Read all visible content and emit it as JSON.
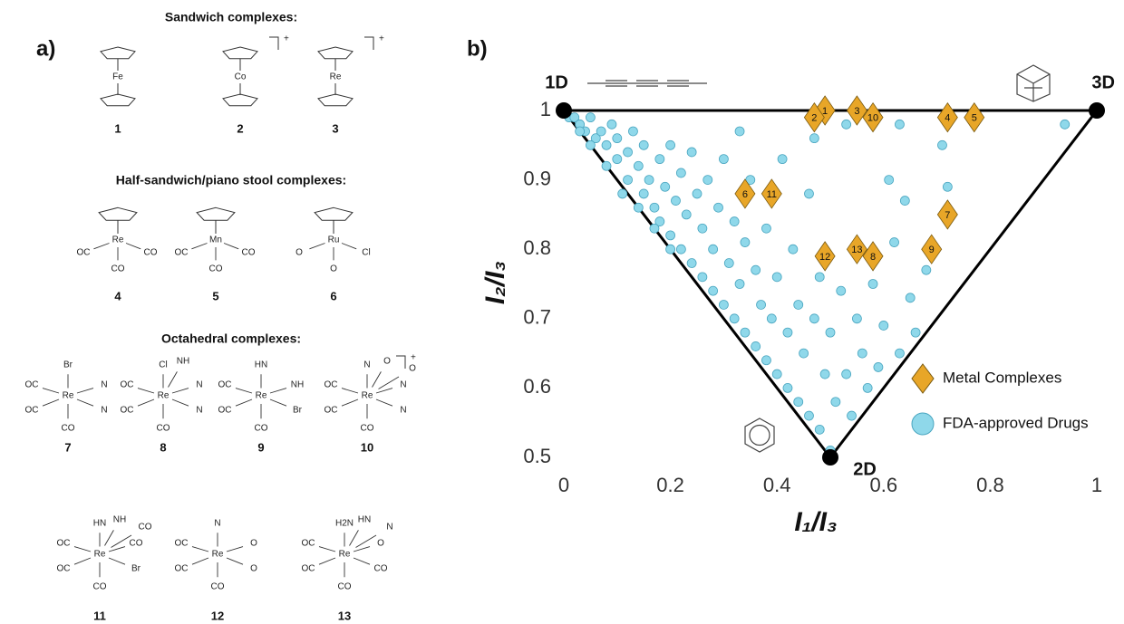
{
  "panel_a": {
    "label": "a)",
    "sections": [
      {
        "title": "Sandwich complexes:",
        "kind": "sandwich",
        "compounds": [
          {
            "number": "1",
            "metal": "Fe"
          },
          {
            "number": "2",
            "metal": "Co",
            "charge": "+"
          },
          {
            "number": "3",
            "metal": "Re",
            "charge": "+"
          }
        ]
      },
      {
        "title": "Half-sandwich/piano stool complexes:",
        "kind": "half",
        "compounds": [
          {
            "number": "4",
            "metal": "Re",
            "ligands": [
              "OC",
              "CO",
              "CO"
            ]
          },
          {
            "number": "5",
            "metal": "Mn",
            "ligands": [
              "OC",
              "CO",
              "CO"
            ]
          },
          {
            "number": "6",
            "metal": "Ru",
            "ligands": [
              "O",
              "O",
              "Cl"
            ]
          }
        ]
      },
      {
        "title": "Octahedral complexes:",
        "kind": "octa",
        "compounds": [
          {
            "number": "7",
            "metal": "Re",
            "ligands": [
              "Br",
              "OC",
              "OC",
              "CO",
              "N",
              "N"
            ]
          },
          {
            "number": "8",
            "metal": "Re",
            "ligands": [
              "Cl",
              "OC",
              "OC",
              "CO",
              "N",
              "N",
              "NH"
            ]
          },
          {
            "number": "9",
            "metal": "Re",
            "ligands": [
              "HN",
              "OC",
              "OC",
              "CO",
              "Br",
              "NH"
            ]
          },
          {
            "number": "10",
            "metal": "Re",
            "ligands": [
              "N",
              "OC",
              "OC",
              "CO",
              "N",
              "N",
              "O",
              "O"
            ],
            "charge": "+"
          },
          {
            "number": "11",
            "metal": "Re",
            "ligands": [
              "HN",
              "OC",
              "OC",
              "CO",
              "Br",
              "CO",
              "NH",
              "CO"
            ]
          },
          {
            "number": "12",
            "metal": "Re",
            "ligands": [
              "N",
              "OC",
              "OC",
              "CO",
              "O",
              "O"
            ]
          },
          {
            "number": "13",
            "metal": "Re",
            "ligands": [
              "H2N",
              "OC",
              "OC",
              "CO",
              "CO",
              "O",
              "HN",
              "N"
            ]
          }
        ]
      }
    ]
  },
  "chart_data": {
    "type": "scatter",
    "panel_label": "b)",
    "x_label": "I₁/I₃",
    "y_label": "I₂/I₃",
    "xlim": [
      0,
      1
    ],
    "xticks": [
      0,
      0.2,
      0.4,
      0.6,
      0.8,
      1
    ],
    "ylim": [
      0.5,
      1
    ],
    "yticks": [
      0.5,
      0.6,
      0.7,
      0.8,
      0.9,
      1
    ],
    "legend": "lower right",
    "vertices": [
      {
        "label": "1D",
        "x": 0,
        "y": 1
      },
      {
        "label": "2D",
        "x": 0.5,
        "y": 0.5
      },
      {
        "label": "3D",
        "x": 1,
        "y": 1
      }
    ],
    "series": [
      {
        "name": "FDA-approved Drugs",
        "color": "#8fd8ea",
        "marker": "circle",
        "x": [
          0,
          0.01,
          0.02,
          0.03,
          0.04,
          0.05,
          0.06,
          0.07,
          0.08,
          0.09,
          0.1,
          0.1,
          0.12,
          0.12,
          0.13,
          0.14,
          0.15,
          0.15,
          0.16,
          0.17,
          0.18,
          0.18,
          0.19,
          0.2,
          0.2,
          0.21,
          0.22,
          0.22,
          0.23,
          0.24,
          0.24,
          0.25,
          0.26,
          0.26,
          0.27,
          0.28,
          0.28,
          0.29,
          0.3,
          0.3,
          0.31,
          0.32,
          0.32,
          0.33,
          0.34,
          0.34,
          0.35,
          0.36,
          0.36,
          0.37,
          0.38,
          0.38,
          0.39,
          0.4,
          0.4,
          0.41,
          0.42,
          0.42,
          0.43,
          0.44,
          0.44,
          0.45,
          0.46,
          0.46,
          0.47,
          0.48,
          0.48,
          0.49,
          0.5,
          0.5,
          0.51,
          0.52,
          0.53,
          0.54,
          0.55,
          0.56,
          0.57,
          0.58,
          0.59,
          0.6,
          0.61,
          0.62,
          0.63,
          0.64,
          0.65,
          0.66,
          0.68,
          0.71,
          0.72,
          0.47,
          0.53,
          0.63,
          0.33,
          0.94,
          0.05,
          0.08,
          0.11,
          0.14,
          0.17,
          0.2,
          0.03
        ],
        "values": [
          1,
          0.99,
          0.99,
          0.98,
          0.97,
          0.99,
          0.96,
          0.97,
          0.95,
          0.98,
          0.93,
          0.96,
          0.94,
          0.9,
          0.97,
          0.92,
          0.88,
          0.95,
          0.9,
          0.86,
          0.93,
          0.84,
          0.89,
          0.82,
          0.95,
          0.87,
          0.8,
          0.91,
          0.85,
          0.78,
          0.94,
          0.88,
          0.76,
          0.83,
          0.9,
          0.74,
          0.8,
          0.86,
          0.72,
          0.93,
          0.78,
          0.7,
          0.84,
          0.75,
          0.68,
          0.81,
          0.9,
          0.66,
          0.77,
          0.72,
          0.64,
          0.83,
          0.7,
          0.62,
          0.76,
          0.93,
          0.6,
          0.68,
          0.8,
          0.58,
          0.72,
          0.65,
          0.56,
          0.88,
          0.7,
          0.54,
          0.76,
          0.62,
          0.51,
          0.68,
          0.58,
          0.74,
          0.62,
          0.56,
          0.7,
          0.65,
          0.6,
          0.75,
          0.63,
          0.69,
          0.9,
          0.81,
          0.65,
          0.87,
          0.73,
          0.68,
          0.77,
          0.95,
          0.89,
          0.96,
          0.98,
          0.98,
          0.97,
          0.98,
          0.95,
          0.92,
          0.88,
          0.86,
          0.83,
          0.8,
          0.97
        ]
      },
      {
        "name": "Metal Complexes",
        "color": "#e8a628",
        "marker": "diamond",
        "labels": [
          "1",
          "2",
          "3",
          "4",
          "5",
          "6",
          "7",
          "8",
          "9",
          "10",
          "11",
          "12",
          "13"
        ],
        "x": [
          0.49,
          0.47,
          0.55,
          0.72,
          0.77,
          0.34,
          0.72,
          0.58,
          0.69,
          0.58,
          0.39,
          0.49,
          0.55
        ],
        "values": [
          1,
          0.99,
          1,
          0.99,
          0.99,
          0.88,
          0.85,
          0.79,
          0.8,
          0.99,
          0.88,
          0.79,
          0.8
        ]
      }
    ]
  }
}
